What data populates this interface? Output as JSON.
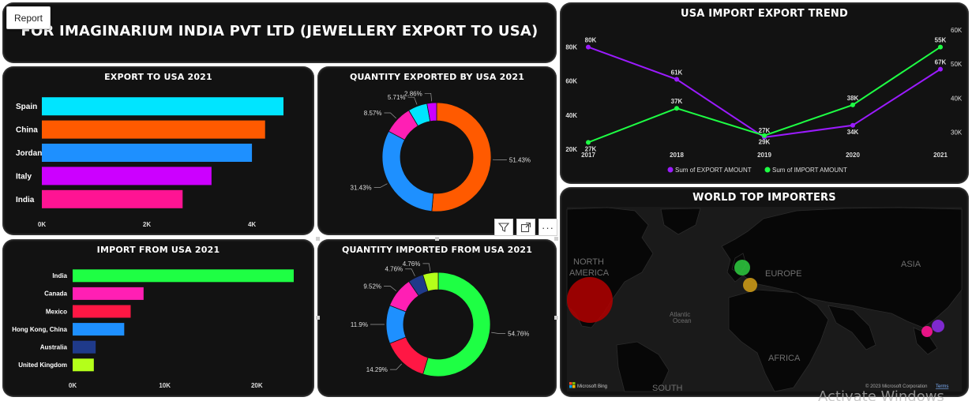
{
  "report_tab": "Report",
  "header": {
    "title": "FOR IMAGINARIUM INDIA PVT LTD (JEWELLERY EXPORT TO USA)"
  },
  "visual_toolbar": {
    "filter_icon": "filter-icon",
    "focus_icon": "focus-mode-icon",
    "more_icon": "more-options-icon"
  },
  "watermark": "Activate Windows",
  "chart_data": [
    {
      "id": "export_bar",
      "type": "bar",
      "orientation": "horizontal",
      "title": "EXPORT TO USA 2021",
      "categories": [
        "Spain",
        "China",
        "Jordan",
        "Italy",
        "India"
      ],
      "values": [
        4600,
        4250,
        4000,
        3230,
        2680
      ],
      "xlim": [
        0,
        4600
      ],
      "xticks": [
        0,
        2000,
        4000
      ],
      "xticklabels": [
        "0K",
        "2K",
        "4K"
      ],
      "colors": [
        "#00e5ff",
        "#ff5a00",
        "#1e90ff",
        "#cc00ff",
        "#ff1493"
      ]
    },
    {
      "id": "qty_exported_donut",
      "type": "pie",
      "title": "QUANTITY EXPORTED BY USA 2021",
      "labels": [
        "51.43%",
        "31.43%",
        "8.57%",
        "5.71%",
        "2.86%"
      ],
      "values": [
        51.43,
        31.43,
        8.57,
        5.71,
        2.86
      ],
      "colors": [
        "#ff5a00",
        "#1e90ff",
        "#ff1fb4",
        "#00e5ff",
        "#cc00ff"
      ]
    },
    {
      "id": "import_bar",
      "type": "bar",
      "orientation": "horizontal",
      "title": "IMPORT FROM USA 2021",
      "categories": [
        "India",
        "Canada",
        "Mexico",
        "Hong Kong, China",
        "Australia",
        "United Kingdom"
      ],
      "values": [
        24000,
        7700,
        6300,
        5600,
        2500,
        2300
      ],
      "xlim": [
        0,
        24000
      ],
      "xticks": [
        0,
        10000,
        20000
      ],
      "xticklabels": [
        "0K",
        "10K",
        "20K"
      ],
      "colors": [
        "#1eff44",
        "#ff1fb4",
        "#ff1744",
        "#1e90ff",
        "#1f3a8a",
        "#b4ff1a"
      ]
    },
    {
      "id": "qty_imported_donut",
      "type": "pie",
      "title": "QUANTITY IMPORTED FROM USA 2021",
      "labels": [
        "54.76%",
        "14.29%",
        "11.9%",
        "9.52%",
        "4.76%",
        "4.76%"
      ],
      "values": [
        54.76,
        14.29,
        11.9,
        9.52,
        4.76,
        4.76
      ],
      "colors": [
        "#1eff44",
        "#ff1744",
        "#1e90ff",
        "#ff1fb4",
        "#1f3a8a",
        "#b4ff1a"
      ]
    },
    {
      "id": "trend_line",
      "type": "line",
      "title": "USA IMPORT EXPORT TREND",
      "x": [
        "2017",
        "2018",
        "2019",
        "2020",
        "2021"
      ],
      "series": [
        {
          "name": "Sum of EXPORT AMOUNT",
          "values": [
            80000,
            61000,
            27000,
            34000,
            67000
          ],
          "labels": [
            "80K",
            "61K",
            "27K",
            "34K",
            "67K"
          ],
          "color": "#9b1bff"
        },
        {
          "name": "Sum of IMPORT AMOUNT",
          "values": [
            27000,
            37000,
            29000,
            38000,
            55000
          ],
          "labels": [
            "27K",
            "37K",
            "29K",
            "38K",
            "55K"
          ],
          "color": "#1eff44"
        }
      ],
      "y_left": {
        "ticks": [
          20000,
          40000,
          60000,
          80000
        ],
        "ticklabels": [
          "20K",
          "40K",
          "60K",
          "80K"
        ],
        "range": [
          20000,
          90000
        ]
      },
      "y_right": {
        "ticks": [
          30000,
          40000,
          50000,
          60000
        ],
        "ticklabels": [
          "30K",
          "40K",
          "50K",
          "60K"
        ],
        "range": [
          25000,
          60000
        ]
      }
    }
  ],
  "map": {
    "title": "WORLD TOP IMPORTERS",
    "labels": [
      "NORTH",
      "AMERICA",
      "EUROPE",
      "ASIA",
      "Atlantic",
      "Ocean",
      "AFRICA",
      "SOUTH"
    ],
    "bing": "Microsoft Bing",
    "copyright": "© 2023 Microsoft Corporation",
    "terms": "Terms"
  }
}
